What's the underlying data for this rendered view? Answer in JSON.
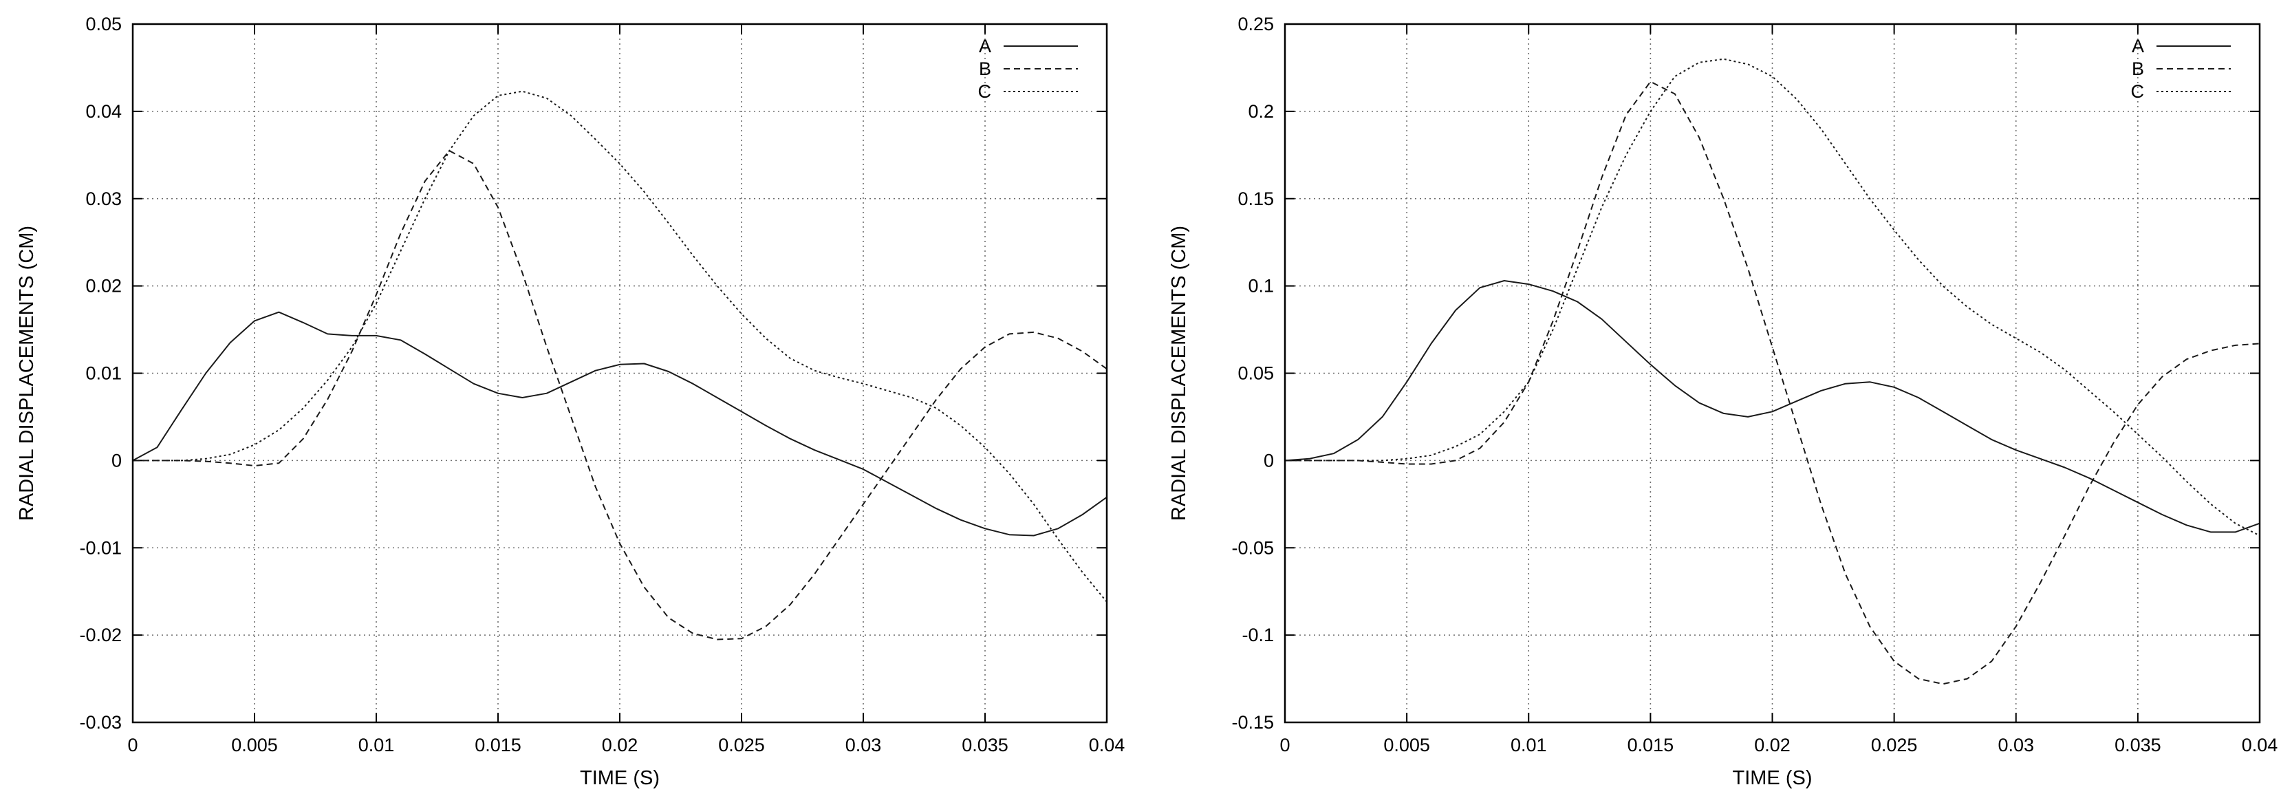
{
  "chart_data": [
    {
      "type": "line",
      "xlabel": "TIME (S)",
      "ylabel": "RADIAL DISPLACEMENTS (CM)",
      "xlim": [
        0,
        0.04
      ],
      "ylim": [
        -0.03,
        0.05
      ],
      "xticks": [
        0,
        0.005,
        0.01,
        0.015,
        0.02,
        0.025,
        0.03,
        0.035,
        0.04
      ],
      "xtick_labels": [
        "0",
        "0.005",
        "0.01",
        "0.015",
        "0.02",
        "0.025",
        "0.03",
        "0.035",
        "0.04"
      ],
      "yticks": [
        -0.03,
        -0.02,
        -0.01,
        0,
        0.01,
        0.02,
        0.03,
        0.04,
        0.05
      ],
      "ytick_labels": [
        "-0.03",
        "-0.02",
        "-0.01",
        "0",
        "0.01",
        "0.02",
        "0.03",
        "0.04",
        "0.05"
      ],
      "grid": true,
      "legend_position": "top-right",
      "series": [
        {
          "name": "A",
          "line_style": "solid",
          "x": [
            0,
            0.001,
            0.002,
            0.003,
            0.004,
            0.005,
            0.006,
            0.007,
            0.008,
            0.009,
            0.01,
            0.011,
            0.012,
            0.013,
            0.014,
            0.015,
            0.016,
            0.017,
            0.018,
            0.019,
            0.02,
            0.021,
            0.022,
            0.023,
            0.024,
            0.025,
            0.026,
            0.027,
            0.028,
            0.029,
            0.03,
            0.031,
            0.032,
            0.033,
            0.034,
            0.035,
            0.036,
            0.037,
            0.038,
            0.039,
            0.04
          ],
          "y": [
            0,
            0.0015,
            0.0058,
            0.01,
            0.0135,
            0.016,
            0.017,
            0.0158,
            0.0145,
            0.0143,
            0.0143,
            0.0138,
            0.0122,
            0.0105,
            0.0088,
            0.0077,
            0.0072,
            0.0077,
            0.009,
            0.0103,
            0.011,
            0.0111,
            0.0102,
            0.0088,
            0.0072,
            0.0056,
            0.004,
            0.0025,
            0.0012,
            0.0001,
            -0.001,
            -0.0025,
            -0.004,
            -0.0055,
            -0.0068,
            -0.0078,
            -0.0085,
            -0.0086,
            -0.0078,
            -0.0062,
            -0.0042
          ]
        },
        {
          "name": "B",
          "line_style": "dashed",
          "x": [
            0,
            0.001,
            0.002,
            0.003,
            0.004,
            0.005,
            0.006,
            0.007,
            0.008,
            0.009,
            0.01,
            0.011,
            0.012,
            0.013,
            0.014,
            0.015,
            0.016,
            0.017,
            0.018,
            0.019,
            0.02,
            0.021,
            0.022,
            0.023,
            0.024,
            0.025,
            0.026,
            0.027,
            0.028,
            0.029,
            0.03,
            0.031,
            0.032,
            0.033,
            0.034,
            0.035,
            0.036,
            0.037,
            0.038,
            0.039,
            0.04
          ],
          "y": [
            0,
            0,
            0,
            -0.0001,
            -0.0003,
            -0.0006,
            -0.0003,
            0.0025,
            0.007,
            0.0125,
            0.019,
            0.026,
            0.032,
            0.0355,
            0.034,
            0.029,
            0.0215,
            0.013,
            0.005,
            -0.003,
            -0.0095,
            -0.0145,
            -0.018,
            -0.0198,
            -0.0205,
            -0.0204,
            -0.019,
            -0.0165,
            -0.013,
            -0.009,
            -0.005,
            -0.001,
            0.003,
            0.007,
            0.0105,
            0.013,
            0.0145,
            0.0147,
            0.014,
            0.0125,
            0.0105
          ]
        },
        {
          "name": "C",
          "line_style": "dotted",
          "x": [
            0,
            0.001,
            0.002,
            0.003,
            0.004,
            0.005,
            0.006,
            0.007,
            0.008,
            0.009,
            0.01,
            0.011,
            0.012,
            0.013,
            0.014,
            0.015,
            0.016,
            0.017,
            0.018,
            0.019,
            0.02,
            0.021,
            0.022,
            0.023,
            0.024,
            0.025,
            0.026,
            0.027,
            0.028,
            0.029,
            0.03,
            0.031,
            0.032,
            0.033,
            0.034,
            0.035,
            0.036,
            0.037,
            0.038,
            0.039,
            0.04
          ],
          "y": [
            0,
            0,
            0,
            0.0002,
            0.0007,
            0.0018,
            0.0035,
            0.006,
            0.0092,
            0.013,
            0.018,
            0.024,
            0.03,
            0.0355,
            0.0395,
            0.0418,
            0.0423,
            0.0415,
            0.0395,
            0.0368,
            0.034,
            0.0308,
            0.0272,
            0.0235,
            0.02,
            0.0168,
            0.014,
            0.0117,
            0.0103,
            0.0095,
            0.0088,
            0.008,
            0.0072,
            0.006,
            0.004,
            0.0015,
            -0.0015,
            -0.005,
            -0.009,
            -0.0128,
            -0.0162
          ]
        }
      ]
    },
    {
      "type": "line",
      "xlabel": "TIME (S)",
      "ylabel": "RADIAL DISPLACEMENTS (CM)",
      "xlim": [
        0,
        0.04
      ],
      "ylim": [
        -0.15,
        0.25
      ],
      "xticks": [
        0,
        0.005,
        0.01,
        0.015,
        0.02,
        0.025,
        0.03,
        0.035,
        0.04
      ],
      "xtick_labels": [
        "0",
        "0.005",
        "0.01",
        "0.015",
        "0.02",
        "0.025",
        "0.03",
        "0.035",
        "0.04"
      ],
      "yticks": [
        -0.15,
        -0.1,
        -0.05,
        0,
        0.05,
        0.1,
        0.15,
        0.2,
        0.25
      ],
      "ytick_labels": [
        "-0.15",
        "-0.1",
        "-0.05",
        "0",
        "0.05",
        "0.1",
        "0.15",
        "0.2",
        "0.25"
      ],
      "grid": true,
      "legend_position": "top-right",
      "series": [
        {
          "name": "A",
          "line_style": "solid",
          "x": [
            0,
            0.001,
            0.002,
            0.003,
            0.004,
            0.005,
            0.006,
            0.007,
            0.008,
            0.009,
            0.01,
            0.011,
            0.012,
            0.013,
            0.014,
            0.015,
            0.016,
            0.017,
            0.018,
            0.019,
            0.02,
            0.021,
            0.022,
            0.023,
            0.024,
            0.025,
            0.026,
            0.027,
            0.028,
            0.029,
            0.03,
            0.031,
            0.032,
            0.033,
            0.034,
            0.035,
            0.036,
            0.037,
            0.038,
            0.039,
            0.04
          ],
          "y": [
            0,
            0.001,
            0.004,
            0.012,
            0.025,
            0.045,
            0.067,
            0.086,
            0.099,
            0.103,
            0.101,
            0.097,
            0.091,
            0.081,
            0.068,
            0.055,
            0.043,
            0.033,
            0.027,
            0.025,
            0.028,
            0.034,
            0.04,
            0.044,
            0.045,
            0.042,
            0.036,
            0.028,
            0.02,
            0.012,
            0.006,
            0.001,
            -0.004,
            -0.01,
            -0.017,
            -0.024,
            -0.031,
            -0.037,
            -0.041,
            -0.041,
            -0.036
          ]
        },
        {
          "name": "B",
          "line_style": "dashed",
          "x": [
            0,
            0.001,
            0.002,
            0.003,
            0.004,
            0.005,
            0.006,
            0.007,
            0.008,
            0.009,
            0.01,
            0.011,
            0.012,
            0.013,
            0.014,
            0.015,
            0.016,
            0.017,
            0.018,
            0.019,
            0.02,
            0.021,
            0.022,
            0.023,
            0.024,
            0.025,
            0.026,
            0.027,
            0.028,
            0.029,
            0.03,
            0.031,
            0.032,
            0.033,
            0.034,
            0.035,
            0.036,
            0.037,
            0.038,
            0.039,
            0.04
          ],
          "y": [
            0,
            0,
            0,
            0,
            -0.001,
            -0.002,
            -0.002,
            0,
            0.007,
            0.022,
            0.045,
            0.08,
            0.12,
            0.162,
            0.198,
            0.217,
            0.21,
            0.185,
            0.15,
            0.11,
            0.065,
            0.02,
            -0.025,
            -0.065,
            -0.095,
            -0.115,
            -0.125,
            -0.128,
            -0.125,
            -0.115,
            -0.095,
            -0.07,
            -0.043,
            -0.015,
            0.01,
            0.032,
            0.048,
            0.058,
            0.063,
            0.066,
            0.067
          ]
        },
        {
          "name": "C",
          "line_style": "dotted",
          "x": [
            0,
            0.001,
            0.002,
            0.003,
            0.004,
            0.005,
            0.006,
            0.007,
            0.008,
            0.009,
            0.01,
            0.011,
            0.012,
            0.013,
            0.014,
            0.015,
            0.016,
            0.017,
            0.018,
            0.019,
            0.02,
            0.021,
            0.022,
            0.023,
            0.024,
            0.025,
            0.026,
            0.027,
            0.028,
            0.029,
            0.03,
            0.031,
            0.032,
            0.033,
            0.034,
            0.035,
            0.036,
            0.037,
            0.038,
            0.039,
            0.04
          ],
          "y": [
            0,
            0,
            0,
            0,
            0,
            0.001,
            0.003,
            0.008,
            0.015,
            0.028,
            0.045,
            0.075,
            0.11,
            0.145,
            0.175,
            0.2,
            0.22,
            0.228,
            0.23,
            0.227,
            0.22,
            0.207,
            0.19,
            0.17,
            0.15,
            0.132,
            0.115,
            0.1,
            0.088,
            0.078,
            0.07,
            0.062,
            0.052,
            0.04,
            0.028,
            0.015,
            0.002,
            -0.012,
            -0.025,
            -0.036,
            -0.043
          ]
        }
      ]
    }
  ]
}
